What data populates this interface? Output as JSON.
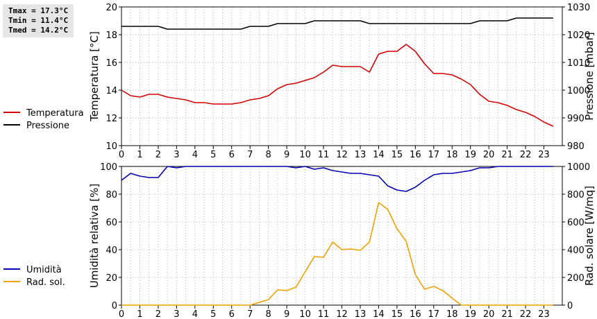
{
  "stats": {
    "tmax": "Tmax = 17.3°C",
    "tmin": "Tmin = 11.4°C",
    "tmed": "Tmed = 14.2°C"
  },
  "chart_data": [
    {
      "type": "line",
      "ylabel": "Temperatura [°C]",
      "y2label": "Pressione [mbar]",
      "xlim": [
        0,
        24
      ],
      "ylim": [
        10,
        20
      ],
      "y2lim": [
        980,
        1030
      ],
      "xticks": [
        0,
        1,
        2,
        3,
        4,
        5,
        6,
        7,
        8,
        9,
        10,
        11,
        12,
        13,
        14,
        15,
        16,
        17,
        18,
        19,
        20,
        21,
        22,
        23
      ],
      "yticks": [
        10,
        12,
        14,
        16,
        18,
        20
      ],
      "y2ticks": [
        980,
        990,
        1000,
        1010,
        1020,
        1030
      ],
      "grid": true,
      "legend_position": "left",
      "series": [
        {
          "name": "Temperatura",
          "axis": "left",
          "color": "#d40000",
          "x": [
            0,
            0.5,
            1,
            1.5,
            2,
            2.5,
            3,
            3.5,
            4,
            4.5,
            5,
            5.5,
            6,
            6.5,
            7,
            7.5,
            8,
            8.5,
            9,
            9.5,
            10,
            10.5,
            11,
            11.5,
            12,
            12.5,
            13,
            13.5,
            14,
            14.5,
            15,
            15.5,
            16,
            16.5,
            17,
            17.5,
            18,
            18.5,
            19,
            19.5,
            20,
            20.5,
            21,
            21.5,
            22,
            22.5,
            23,
            23.5
          ],
          "values": [
            14.0,
            13.6,
            13.5,
            13.7,
            13.7,
            13.5,
            13.4,
            13.3,
            13.1,
            13.1,
            13.0,
            13.0,
            13.0,
            13.1,
            13.3,
            13.4,
            13.6,
            14.1,
            14.4,
            14.5,
            14.7,
            14.9,
            15.3,
            15.8,
            15.7,
            15.7,
            15.7,
            15.3,
            16.6,
            16.8,
            16.8,
            17.3,
            16.8,
            15.9,
            15.2,
            15.2,
            15.1,
            14.8,
            14.4,
            13.7,
            13.2,
            13.1,
            12.9,
            12.6,
            12.4,
            12.1,
            11.7,
            11.4
          ]
        },
        {
          "name": "Pressione",
          "axis": "right",
          "color": "#000000",
          "x": [
            0,
            0.5,
            1,
            1.5,
            2,
            2.5,
            3,
            3.5,
            4,
            4.5,
            5,
            5.5,
            6,
            6.5,
            7,
            7.5,
            8,
            8.5,
            9,
            9.5,
            10,
            10.5,
            11,
            11.5,
            12,
            12.5,
            13,
            13.5,
            14,
            14.5,
            15,
            15.5,
            16,
            16.5,
            17,
            17.5,
            18,
            18.5,
            19,
            19.5,
            20,
            20.5,
            21,
            21.5,
            22,
            22.5,
            23,
            23.5
          ],
          "values": [
            1023,
            1023,
            1023,
            1023,
            1023,
            1022,
            1022,
            1022,
            1022,
            1022,
            1022,
            1022,
            1022,
            1022,
            1023,
            1023,
            1023,
            1024,
            1024,
            1024,
            1024,
            1025,
            1025,
            1025,
            1025,
            1025,
            1025,
            1024,
            1024,
            1024,
            1024,
            1024,
            1024,
            1024,
            1024,
            1024,
            1024,
            1024,
            1024,
            1025,
            1025,
            1025,
            1025,
            1026,
            1026,
            1026,
            1026,
            1026
          ]
        }
      ]
    },
    {
      "type": "line",
      "ylabel": "Umidità relativa [%]",
      "y2label": "Rad. solare [W/mq]",
      "xlim": [
        0,
        24
      ],
      "ylim": [
        0,
        100
      ],
      "y2lim": [
        0,
        1000
      ],
      "xticks": [
        0,
        1,
        2,
        3,
        4,
        5,
        6,
        7,
        8,
        9,
        10,
        11,
        12,
        13,
        14,
        15,
        16,
        17,
        18,
        19,
        20,
        21,
        22,
        23
      ],
      "yticks": [
        0,
        20,
        40,
        60,
        80,
        100
      ],
      "y2ticks": [
        0,
        200,
        400,
        600,
        800,
        1000
      ],
      "grid": true,
      "legend_position": "left",
      "series": [
        {
          "name": "Umidità",
          "axis": "left",
          "color": "#0000b4",
          "x": [
            0,
            0.5,
            1,
            1.5,
            2,
            2.5,
            3,
            3.5,
            4,
            4.5,
            5,
            5.5,
            6,
            6.5,
            7,
            7.5,
            8,
            8.5,
            9,
            9.5,
            10,
            10.5,
            11,
            11.5,
            12,
            12.5,
            13,
            13.5,
            14,
            14.5,
            15,
            15.5,
            16,
            16.5,
            17,
            17.5,
            18,
            18.5,
            19,
            19.5,
            20,
            20.5,
            21,
            21.5,
            22,
            22.5,
            23,
            23.5
          ],
          "values": [
            90,
            95,
            93,
            92,
            92,
            100,
            99,
            100,
            100,
            100,
            100,
            100,
            100,
            100,
            100,
            100,
            100,
            100,
            100,
            99,
            100,
            98,
            99,
            97,
            96,
            95,
            95,
            94,
            93,
            86,
            83,
            82,
            85,
            90,
            94,
            95,
            95,
            96,
            97,
            99,
            99,
            100,
            100,
            100,
            100,
            100,
            100,
            100
          ]
        },
        {
          "name": "Rad. sol.",
          "axis": "right",
          "color": "#f0a000",
          "x": [
            0,
            0.5,
            1,
            1.5,
            2,
            2.5,
            3,
            3.5,
            4,
            4.5,
            5,
            5.5,
            6,
            6.5,
            7,
            7.5,
            8,
            8.5,
            9,
            9.5,
            10,
            10.5,
            11,
            11.5,
            12,
            12.5,
            13,
            13.5,
            14,
            14.5,
            15,
            15.5,
            16,
            16.5,
            17,
            17.5,
            18,
            18.5,
            19,
            19.5,
            20,
            20.5,
            21,
            21.5,
            22,
            22.5,
            23,
            23.5
          ],
          "values": [
            0,
            0,
            0,
            0,
            0,
            0,
            0,
            0,
            0,
            0,
            0,
            0,
            0,
            0,
            0,
            20,
            40,
            110,
            105,
            130,
            240,
            350,
            345,
            455,
            400,
            405,
            395,
            455,
            740,
            690,
            550,
            460,
            220,
            115,
            135,
            105,
            50,
            0,
            0,
            0,
            0,
            0,
            0,
            0,
            0,
            0,
            0,
            0
          ]
        }
      ]
    }
  ]
}
